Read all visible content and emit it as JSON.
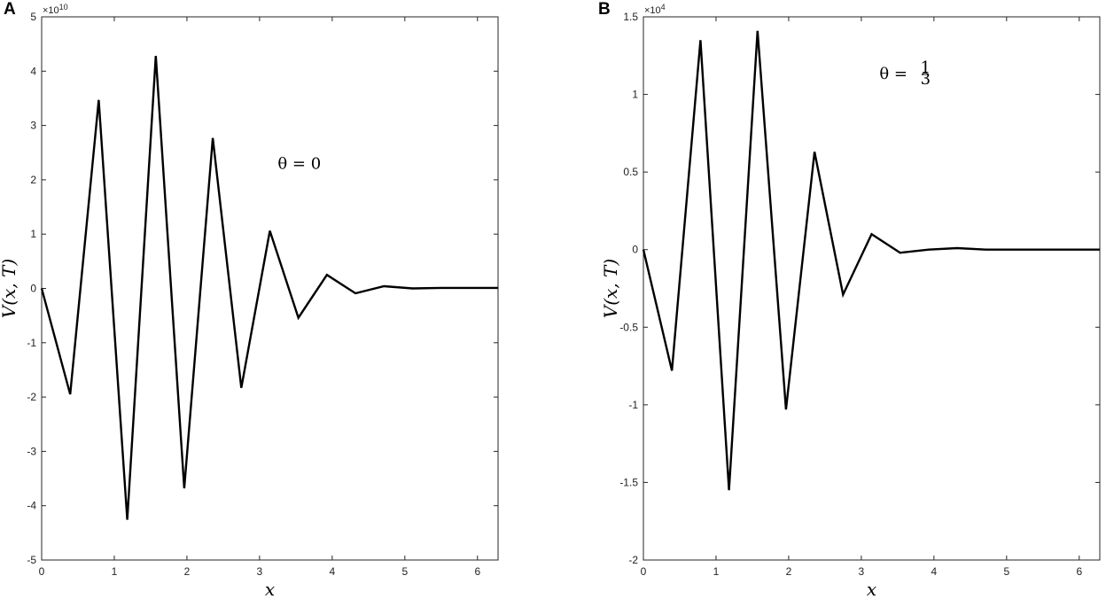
{
  "panels": [
    {
      "letter": "A"
    },
    {
      "letter": "B"
    }
  ],
  "chart_data": [
    {
      "type": "line",
      "panel": "A",
      "title": "",
      "xlabel": "x",
      "ylabel": "V(x, T)",
      "xlim": [
        0,
        6.2832
      ],
      "ylim": [
        -5,
        5
      ],
      "y_multiplier": "×10",
      "y_exponent": "10",
      "xticks": [
        0,
        1,
        2,
        3,
        4,
        5,
        6
      ],
      "yticks": [
        -5,
        -4,
        -3,
        -2,
        -1,
        0,
        1,
        2,
        3,
        4,
        5
      ],
      "annotation": {
        "prefix": "θ = ",
        "value": "0",
        "x": 3.25,
        "y": 2.2
      },
      "grid": false,
      "series": [
        {
          "color": "#000000",
          "x": [
            0,
            0.3927,
            0.7854,
            1.1781,
            1.5708,
            1.9635,
            2.3562,
            2.7489,
            3.1416,
            3.5343,
            3.927,
            4.3197,
            4.7124,
            5.1051,
            5.4978,
            5.8905,
            6.2832
          ],
          "y": [
            0,
            -1.95,
            3.47,
            -4.26,
            4.28,
            -3.68,
            2.77,
            -1.83,
            1.06,
            -0.54,
            0.25,
            -0.09,
            0.04,
            0.0,
            0.01,
            0.01,
            0.01
          ]
        }
      ]
    },
    {
      "type": "line",
      "panel": "B",
      "title": "",
      "xlabel": "x",
      "ylabel": "V(x, T)",
      "xlim": [
        0,
        6.2832
      ],
      "ylim": [
        -2,
        1.5
      ],
      "y_multiplier": "×10",
      "y_exponent": "4",
      "xticks": [
        0,
        1,
        2,
        3,
        4,
        5,
        6
      ],
      "yticks": [
        -2,
        -1.5,
        -1,
        -0.5,
        0,
        0.5,
        1,
        1.5
      ],
      "annotation": {
        "prefix": "θ = ",
        "numerator": "1",
        "denominator": "3",
        "x": 3.25,
        "y": 1.1
      },
      "grid": false,
      "series": [
        {
          "color": "#000000",
          "x": [
            0,
            0.3927,
            0.7854,
            1.1781,
            1.5708,
            1.9635,
            2.3562,
            2.7489,
            3.1416,
            3.5343,
            3.927,
            4.3197,
            4.7124,
            5.1051,
            5.4978,
            5.8905,
            6.2832
          ],
          "y": [
            0,
            -0.78,
            1.35,
            -1.55,
            1.41,
            -1.03,
            0.63,
            -0.29,
            0.1,
            -0.02,
            0.0,
            0.01,
            0.0,
            0.0,
            0.0,
            0.0,
            0.0
          ]
        }
      ]
    }
  ]
}
